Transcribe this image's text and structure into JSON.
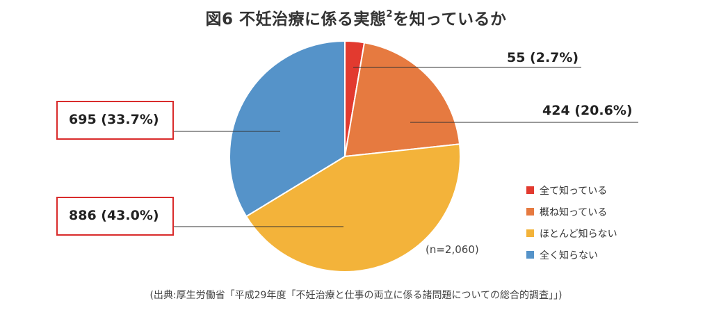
{
  "title": {
    "main": "図6 不妊治療に係る実態",
    "superscript": "2",
    "suffix": "を知っているか"
  },
  "chart_data": {
    "type": "pie",
    "slices": [
      {
        "label": "全て知っている",
        "count": 55,
        "percent": 2.7,
        "display": "55 (2.7%)",
        "color": "#e23a2f",
        "highlighted": false
      },
      {
        "label": "概ね知っている",
        "count": 424,
        "percent": 20.6,
        "display": "424 (20.6%)",
        "color": "#e67a40",
        "highlighted": false
      },
      {
        "label": "ほとんど知らない",
        "count": 886,
        "percent": 43.0,
        "display": "886 (43.0%)",
        "color": "#f3b33a",
        "highlighted": true
      },
      {
        "label": "全く知らない",
        "count": 695,
        "percent": 33.7,
        "display": "695 (33.7%)",
        "color": "#5593c9",
        "highlighted": true
      }
    ],
    "total_note": "(n=2,060)",
    "legend_position": "right"
  },
  "source": "(出典:厚生労働省「平成29年度「不妊治療と仕事の両立に係る諸問題についての総合的調査」」)",
  "colors": {
    "highlight_border": "#d92b2b",
    "leader_line": "#333333"
  }
}
